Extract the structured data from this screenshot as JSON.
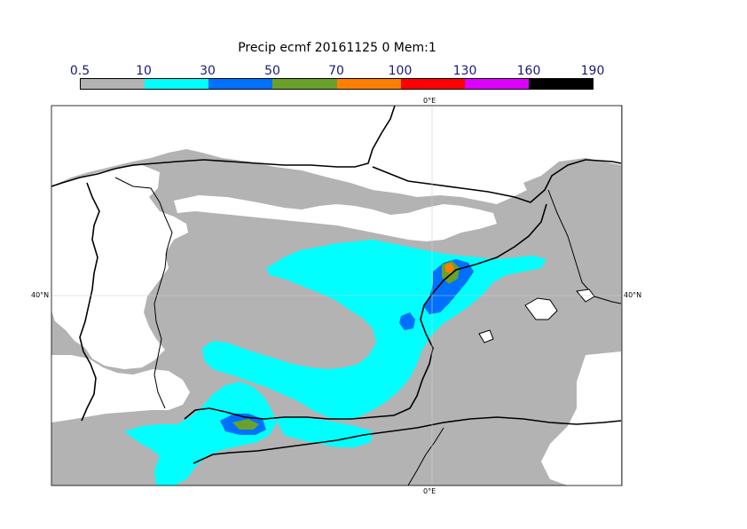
{
  "title": "Precip ecmf 20161125 0 Mem:1",
  "legend": {
    "labels": [
      "0.5",
      "10",
      "30",
      "50",
      "70",
      "100",
      "130",
      "160",
      "190"
    ],
    "colors": [
      "#b3b3b3",
      "#00ffff",
      "#0070ff",
      "#6aa12a",
      "#ff8000",
      "#ff0000",
      "#dd00ff",
      "#000000"
    ]
  },
  "grid_labels": {
    "lon_top": "0°E",
    "lon_bottom": "0°E",
    "lat_left": "40°N",
    "lat_right": "40°N"
  },
  "colors": {
    "land": "#ffffff",
    "precip_light": "#b3b3b3",
    "precip_10": "#00ffff",
    "precip_30": "#0070ff",
    "precip_50": "#6aa12a",
    "precip_70": "#ff8000",
    "coast": "#000000",
    "grid": "#cccccc"
  }
}
